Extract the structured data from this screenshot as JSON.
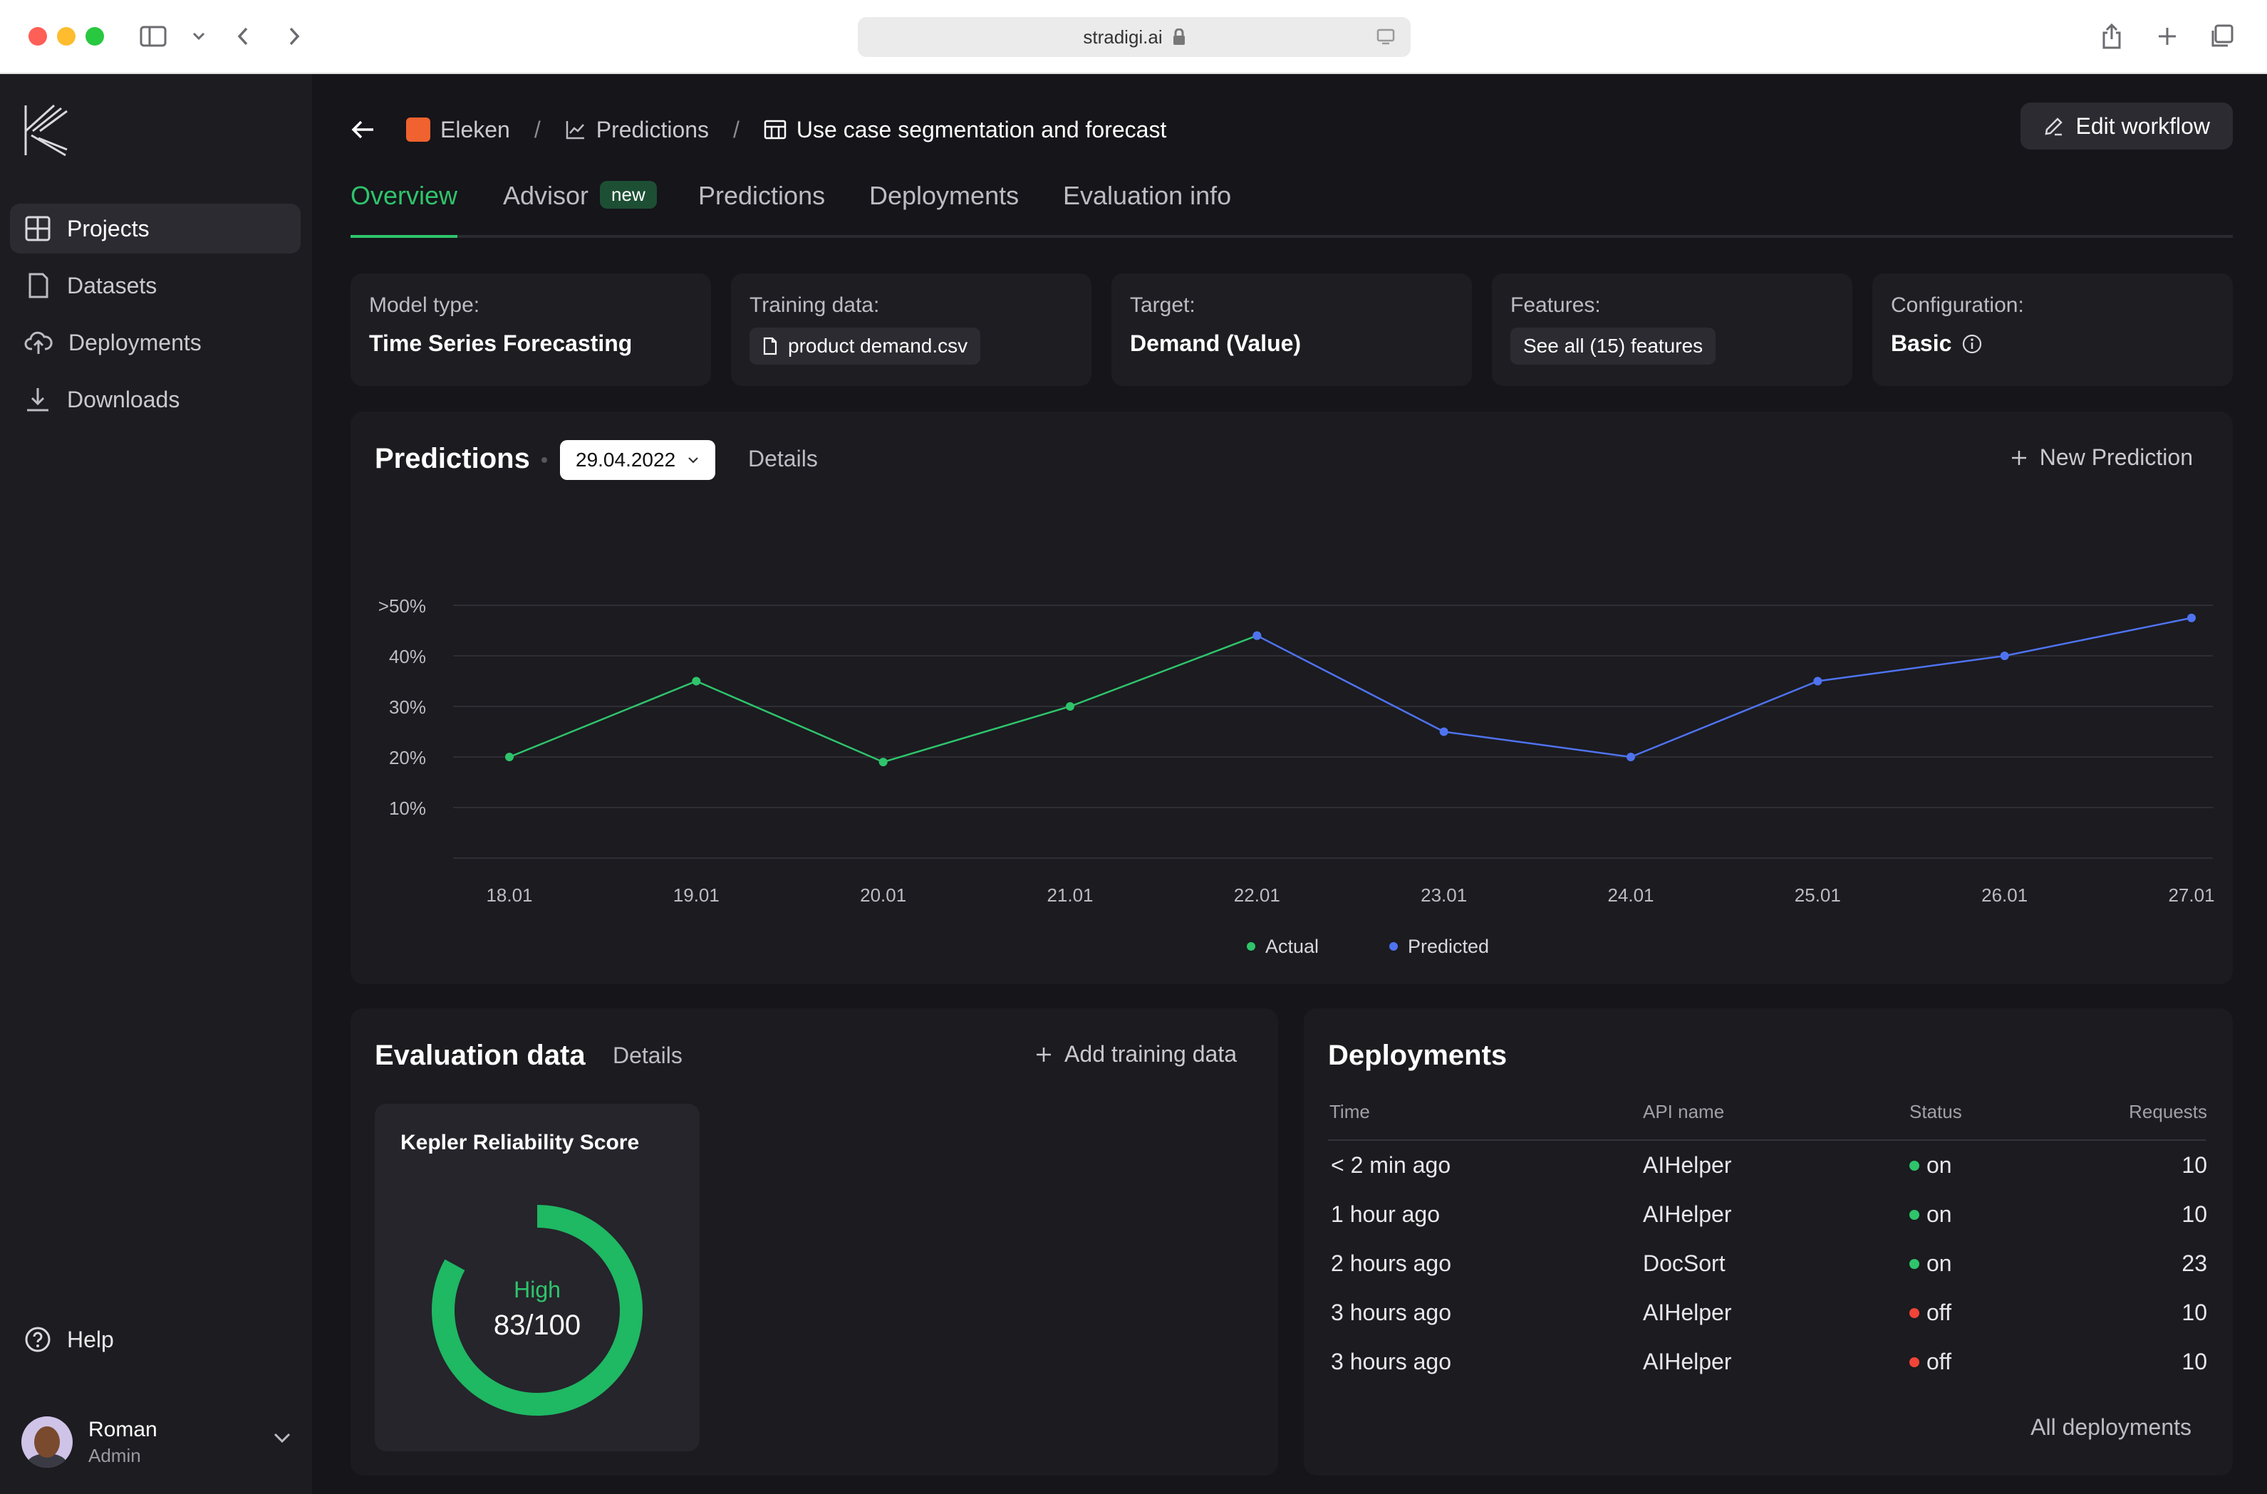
{
  "browser": {
    "url": "stradigi.ai"
  },
  "sidebar": {
    "items": [
      {
        "label": "Projects",
        "icon": "grid-icon",
        "active": true
      },
      {
        "label": "Datasets",
        "icon": "document-icon",
        "active": false
      },
      {
        "label": "Deployments",
        "icon": "cloud-upload-icon",
        "active": false
      },
      {
        "label": "Downloads",
        "icon": "download-icon",
        "active": false
      }
    ],
    "help_label": "Help",
    "user": {
      "name": "Roman",
      "role": "Admin"
    }
  },
  "breadcrumb": {
    "org": "Eleken",
    "section": "Predictions",
    "current": "Use case segmentation and forecast"
  },
  "header": {
    "edit_label": "Edit workflow"
  },
  "tabs": [
    {
      "label": "Overview",
      "active": true
    },
    {
      "label": "Advisor",
      "badge": "new"
    },
    {
      "label": "Predictions"
    },
    {
      "label": "Deployments"
    },
    {
      "label": "Evaluation info"
    }
  ],
  "info_cards": {
    "model_type": {
      "label": "Model type:",
      "value": "Time Series Forecasting"
    },
    "training_data": {
      "label": "Training data:",
      "value": "product demand.csv"
    },
    "target": {
      "label": "Target:",
      "value": "Demand (Value)"
    },
    "features": {
      "label": "Features:",
      "value": "See all (15) features"
    },
    "configuration": {
      "label": "Configuration:",
      "value": "Basic"
    }
  },
  "predictions_panel": {
    "title": "Predictions",
    "date": "29.04.2022",
    "details_label": "Details",
    "new_label": "New Prediction"
  },
  "chart_data": {
    "type": "line",
    "categories": [
      "18.01",
      "19.01",
      "20.01",
      "21.01",
      "22.01",
      "23.01",
      "24.01",
      "25.01",
      "26.01",
      "27.01"
    ],
    "y_ticks": [
      ">50%",
      "40%",
      "30%",
      "20%",
      "10%"
    ],
    "y_tick_values": [
      50,
      40,
      30,
      20,
      10
    ],
    "ylim": [
      0,
      50
    ],
    "series": [
      {
        "name": "Actual",
        "color": "#2fc46b",
        "values": [
          20,
          35,
          19,
          30,
          44,
          null,
          null,
          null,
          null,
          null
        ]
      },
      {
        "name": "Predicted",
        "color": "#4f73f0",
        "values": [
          null,
          null,
          null,
          null,
          44,
          25,
          20,
          35,
          40,
          47.5
        ]
      }
    ],
    "legend": "bottom-center",
    "grid": true
  },
  "evaluation": {
    "title": "Evaluation data",
    "details_label": "Details",
    "add_label": "Add training data",
    "score_title": "Kepler Reliability Score",
    "score_level": "High",
    "score_text": "83/100",
    "score_value": 83,
    "score_max": 100,
    "score_color": "#1fb863"
  },
  "deployments": {
    "title": "Deployments",
    "columns": [
      "Time",
      "API name",
      "Status",
      "Requests"
    ],
    "rows": [
      {
        "time": "< 2 min ago",
        "api": "AIHelper",
        "status": "on",
        "requests": "10"
      },
      {
        "time": "1 hour ago",
        "api": "AIHelper",
        "status": "on",
        "requests": "10"
      },
      {
        "time": "2 hours ago",
        "api": "DocSort",
        "status": "on",
        "requests": "23"
      },
      {
        "time": "3 hours ago",
        "api": "AIHelper",
        "status": "off",
        "requests": "10"
      },
      {
        "time": "3 hours ago",
        "api": "AIHelper",
        "status": "off",
        "requests": "10"
      }
    ],
    "all_label": "All deployments",
    "on_color": "#2fc46b",
    "off_color": "#f04438"
  }
}
